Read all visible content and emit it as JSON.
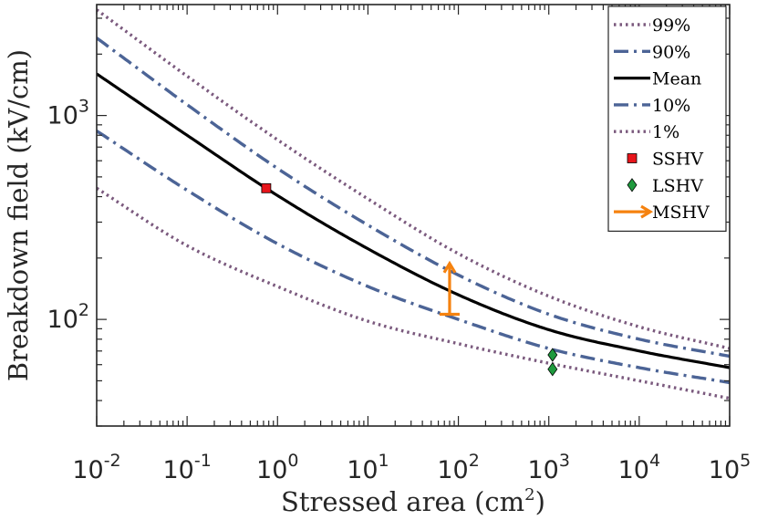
{
  "chart_data": {
    "type": "line",
    "title": "",
    "xlabel": "Stressed area (cm",
    "xlabel_sup": "2",
    "xlabel_tail": ")",
    "ylabel": "Breakdown field (kV/cm)",
    "x_scale": "log",
    "y_scale": "log",
    "xlim": [
      0.01,
      100000
    ],
    "ylim": [
      30,
      3500
    ],
    "x_ticks": [
      {
        "value": 0.01,
        "base": "10",
        "exp": "-2"
      },
      {
        "value": 0.1,
        "base": "10",
        "exp": "-1"
      },
      {
        "value": 1,
        "base": "10",
        "exp": "0"
      },
      {
        "value": 10,
        "base": "10",
        "exp": "1"
      },
      {
        "value": 100,
        "base": "10",
        "exp": "2"
      },
      {
        "value": 1000,
        "base": "10",
        "exp": "3"
      },
      {
        "value": 10000,
        "base": "10",
        "exp": "4"
      },
      {
        "value": 100000,
        "base": "10",
        "exp": "5"
      }
    ],
    "y_ticks": [
      {
        "value": 100,
        "base": "10",
        "exp": "2"
      },
      {
        "value": 1000,
        "base": "10",
        "exp": "3"
      }
    ],
    "grid": false,
    "legend_position": "top-right",
    "series": [
      {
        "name": "99%",
        "style": "dotted",
        "color": "#7b5a7e",
        "x": [
          0.01,
          0.1,
          1,
          10,
          100,
          1000,
          10000,
          100000
        ],
        "y": [
          3300,
          1560,
          760,
          390,
          210,
          130,
          92,
          72
        ]
      },
      {
        "name": "90%",
        "style": "dashdot",
        "color": "#4c6496",
        "x": [
          0.01,
          0.1,
          1,
          10,
          100,
          1000,
          10000,
          100000
        ],
        "y": [
          2400,
          1130,
          550,
          290,
          165,
          106,
          80,
          66
        ]
      },
      {
        "name": "Mean",
        "style": "solid",
        "color": "#000000",
        "x": [
          0.01,
          0.1,
          1,
          10,
          100,
          1000,
          10000,
          100000
        ],
        "y": [
          1600,
          800,
          405,
          222,
          132,
          89,
          70,
          58
        ]
      },
      {
        "name": "10%",
        "style": "dashdot",
        "color": "#4c6496",
        "x": [
          0.01,
          0.1,
          1,
          10,
          100,
          1000,
          10000,
          100000
        ],
        "y": [
          840,
          430,
          235,
          145,
          100,
          72,
          58,
          49
        ]
      },
      {
        "name": "1%",
        "style": "dotted",
        "color": "#7b5a7e",
        "x": [
          0.01,
          0.1,
          1,
          10,
          100,
          1000,
          10000,
          100000
        ],
        "y": [
          440,
          230,
          145,
          98,
          76,
          61,
          50,
          41
        ]
      }
    ],
    "points": [
      {
        "name": "SSHV",
        "marker": "square",
        "color": "#e8151b",
        "x": [
          0.75
        ],
        "y": [
          440
        ]
      },
      {
        "name": "LSHV",
        "marker": "diamond",
        "color": "#1f9a3e",
        "x": [
          1100,
          1100
        ],
        "y": [
          67,
          57
        ]
      }
    ],
    "annotations": [
      {
        "name": "MSHV",
        "type": "arrow",
        "color": "#f5820f",
        "x": 80,
        "y_from": 106,
        "y_to": 188
      }
    ]
  }
}
